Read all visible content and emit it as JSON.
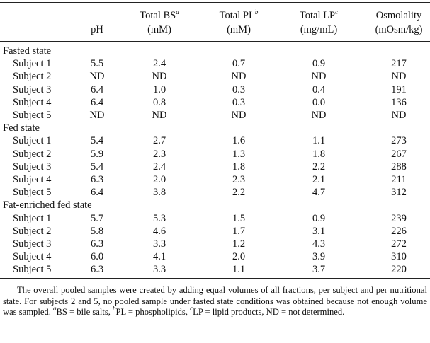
{
  "table": {
    "columns": [
      {
        "name": "pH"
      },
      {
        "name": "Total BS",
        "sup": "a",
        "unit": "(mM)"
      },
      {
        "name": "Total PL",
        "sup": "b",
        "unit": "(mM)"
      },
      {
        "name": "Total LP",
        "sup": "c",
        "unit": "(mg/mL)"
      },
      {
        "name": "Osmolality",
        "unit": "(mOsm/kg)"
      }
    ],
    "sections": [
      {
        "title": "Fasted state",
        "rows": [
          [
            "Subject 1",
            "5.5",
            "2.4",
            "0.7",
            "0.9",
            "217"
          ],
          [
            "Subject 2",
            "ND",
            "ND",
            "ND",
            "ND",
            "ND"
          ],
          [
            "Subject 3",
            "6.4",
            "1.0",
            "0.3",
            "0.4",
            "191"
          ],
          [
            "Subject 4",
            "6.4",
            "0.8",
            "0.3",
            "0.0",
            "136"
          ],
          [
            "Subject 5",
            "ND",
            "ND",
            "ND",
            "ND",
            "ND"
          ]
        ]
      },
      {
        "title": "Fed state",
        "rows": [
          [
            "Subject 1",
            "5.4",
            "2.7",
            "1.6",
            "1.1",
            "273"
          ],
          [
            "Subject 2",
            "5.9",
            "2.3",
            "1.3",
            "1.8",
            "267"
          ],
          [
            "Subject 3",
            "5.4",
            "2.4",
            "1.8",
            "2.2",
            "288"
          ],
          [
            "Subject 4",
            "6.3",
            "2.0",
            "2.3",
            "2.1",
            "211"
          ],
          [
            "Subject 5",
            "6.4",
            "3.8",
            "2.2",
            "4.7",
            "312"
          ]
        ]
      },
      {
        "title": "Fat-enriched fed state",
        "rows": [
          [
            "Subject 1",
            "5.7",
            "5.3",
            "1.5",
            "0.9",
            "239"
          ],
          [
            "Subject 2",
            "5.8",
            "4.6",
            "1.7",
            "3.1",
            "226"
          ],
          [
            "Subject 3",
            "6.3",
            "3.3",
            "1.2",
            "4.3",
            "272"
          ],
          [
            "Subject 4",
            "6.0",
            "4.1",
            "2.0",
            "3.9",
            "310"
          ],
          [
            "Subject 5",
            "6.3",
            "3.3",
            "1.1",
            "3.7",
            "220"
          ]
        ]
      }
    ],
    "footnote": [
      {
        "text": "The overall pooled samples were created by adding equal volumes of all fractions, per subject and per nutritional state. For subjects 2 and 5, no pooled sample under fasted state conditions was obtained because not enough volume was sampled. "
      },
      {
        "sup": "a"
      },
      {
        "text": "BS = bile salts, "
      },
      {
        "sup": "b"
      },
      {
        "text": "PL = phospholipids, "
      },
      {
        "sup": "c"
      },
      {
        "text": "LP = lipid products, ND = not determined."
      }
    ]
  }
}
